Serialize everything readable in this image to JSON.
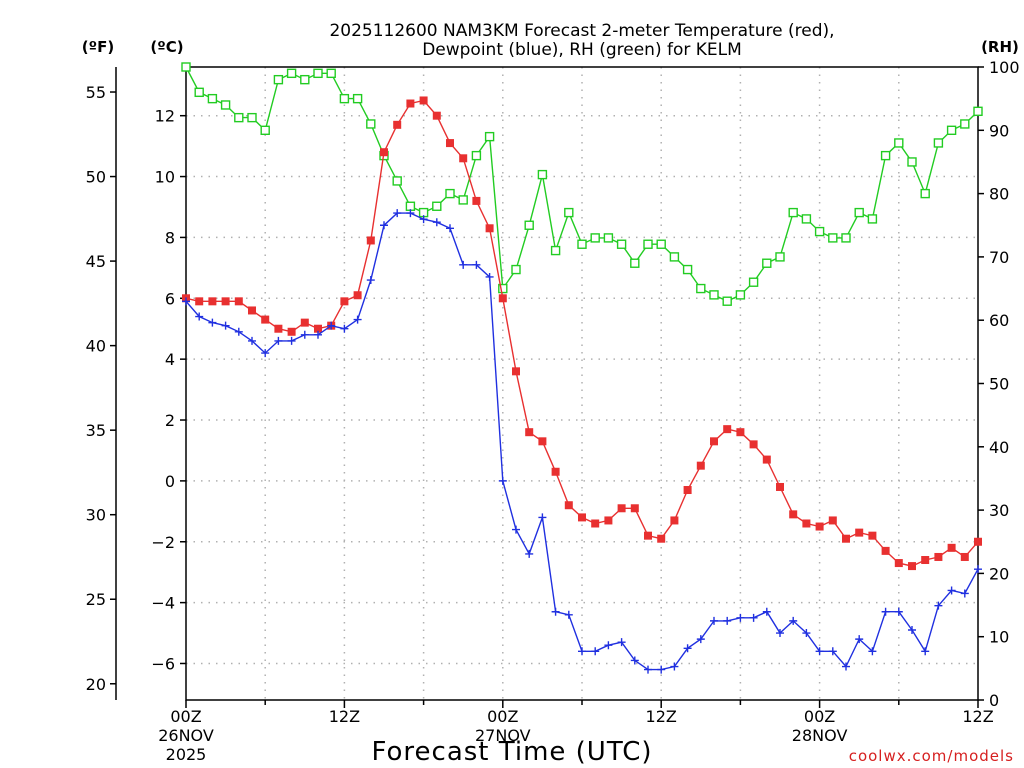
{
  "chart_data": {
    "type": "line",
    "title_line1": "2025112600 NAM3KM Forecast 2-meter Temperature (red),",
    "title_line2": "Dewpoint (blue), RH (green) for KELM",
    "xlabel": "Forecast Time (UTC)",
    "credit": "coolwx.com/models",
    "units": {
      "fahrenheit": "(ºF)",
      "celsius": "(ºC)",
      "rh": "(RH)"
    },
    "x_range_hours": [
      0,
      60
    ],
    "celsius_range": [
      -7.2,
      13.6
    ],
    "rh_range": [
      0,
      100
    ],
    "fahrenheit_ticks": [
      "55",
      "50",
      "45",
      "40",
      "35",
      "30",
      "25",
      "20"
    ],
    "fahrenheit_values": [
      55,
      50,
      45,
      40,
      35,
      30,
      25,
      20
    ],
    "celsius_ticks": [
      "12",
      "10",
      "8",
      "6",
      "4",
      "2",
      "0",
      "−2",
      "−4",
      "−6"
    ],
    "celsius_values": [
      12,
      10,
      8,
      6,
      4,
      2,
      0,
      -2,
      -4,
      -6
    ],
    "rh_ticks": [
      "100",
      "90",
      "80",
      "70",
      "60",
      "50",
      "40",
      "30",
      "20",
      "10",
      "0"
    ],
    "rh_values": [
      100,
      90,
      80,
      70,
      60,
      50,
      40,
      30,
      20,
      10,
      0
    ],
    "x_ticks": [
      {
        "hour": 0,
        "label": "00Z",
        "date": "26NOV",
        "year": "2025"
      },
      {
        "hour": 12,
        "label": "12Z",
        "date": "",
        "year": ""
      },
      {
        "hour": 24,
        "label": "00Z",
        "date": "27NOV",
        "year": ""
      },
      {
        "hour": 36,
        "label": "12Z",
        "date": "",
        "year": ""
      },
      {
        "hour": 48,
        "label": "00Z",
        "date": "28NOV",
        "year": ""
      },
      {
        "hour": 60,
        "label": "12Z",
        "date": "",
        "year": ""
      }
    ],
    "series": [
      {
        "name": "Temperature",
        "units": "ºC",
        "color": "#e83030",
        "marker": "filled-square",
        "values": [
          6.0,
          5.9,
          5.9,
          5.9,
          5.9,
          5.6,
          5.3,
          5.0,
          4.9,
          5.2,
          5.0,
          5.1,
          5.9,
          6.1,
          7.9,
          10.8,
          11.7,
          12.4,
          12.5,
          12.0,
          11.1,
          10.6,
          9.2,
          8.3,
          6.0,
          3.6,
          1.6,
          1.3,
          0.3,
          -0.8,
          -1.2,
          -1.4,
          -1.3,
          -0.9,
          -0.9,
          -1.8,
          -1.9,
          -1.3,
          -0.3,
          0.5,
          1.3,
          1.7,
          1.6,
          1.2,
          0.7,
          -0.2,
          -1.1,
          -1.4,
          -1.5,
          -1.3,
          -1.9,
          -1.7,
          -1.8,
          -2.3,
          -2.7,
          -2.8,
          -2.6,
          -2.5,
          -2.2,
          -2.5,
          -2.0
        ]
      },
      {
        "name": "Dewpoint",
        "units": "ºC",
        "color": "#2030e0",
        "marker": "plus",
        "values": [
          5.9,
          5.4,
          5.2,
          5.1,
          4.9,
          4.6,
          4.2,
          4.6,
          4.6,
          4.8,
          4.8,
          5.1,
          5.0,
          5.3,
          6.6,
          8.4,
          8.8,
          8.8,
          8.6,
          8.5,
          8.3,
          7.1,
          7.1,
          6.7,
          0.0,
          -1.6,
          -2.4,
          -1.2,
          -4.3,
          -4.4,
          -5.6,
          -5.6,
          -5.4,
          -5.3,
          -5.9,
          -6.2,
          -6.2,
          -6.1,
          -5.5,
          -5.2,
          -4.6,
          -4.6,
          -4.5,
          -4.5,
          -4.3,
          -5.0,
          -4.6,
          -5.0,
          -5.6,
          -5.6,
          -6.1,
          -5.2,
          -5.6,
          -4.3,
          -4.3,
          -4.9,
          -5.6,
          -4.1,
          -3.6,
          -3.7,
          -2.9
        ]
      },
      {
        "name": "RH",
        "units": "%",
        "color": "#22cc22",
        "marker": "open-square",
        "values": [
          100,
          96,
          95,
          94,
          92,
          92,
          90,
          98,
          99,
          98,
          99,
          99,
          95,
          95,
          91,
          86,
          82,
          78,
          77,
          78,
          80,
          79,
          86,
          89,
          65,
          68,
          75,
          83,
          71,
          77,
          72,
          73,
          73,
          72,
          69,
          72,
          72,
          70,
          68,
          65,
          64,
          63,
          64,
          66,
          69,
          70,
          77,
          76,
          74,
          73,
          73,
          77,
          76,
          86,
          88,
          85,
          80,
          88,
          90,
          91,
          93
        ]
      }
    ]
  }
}
